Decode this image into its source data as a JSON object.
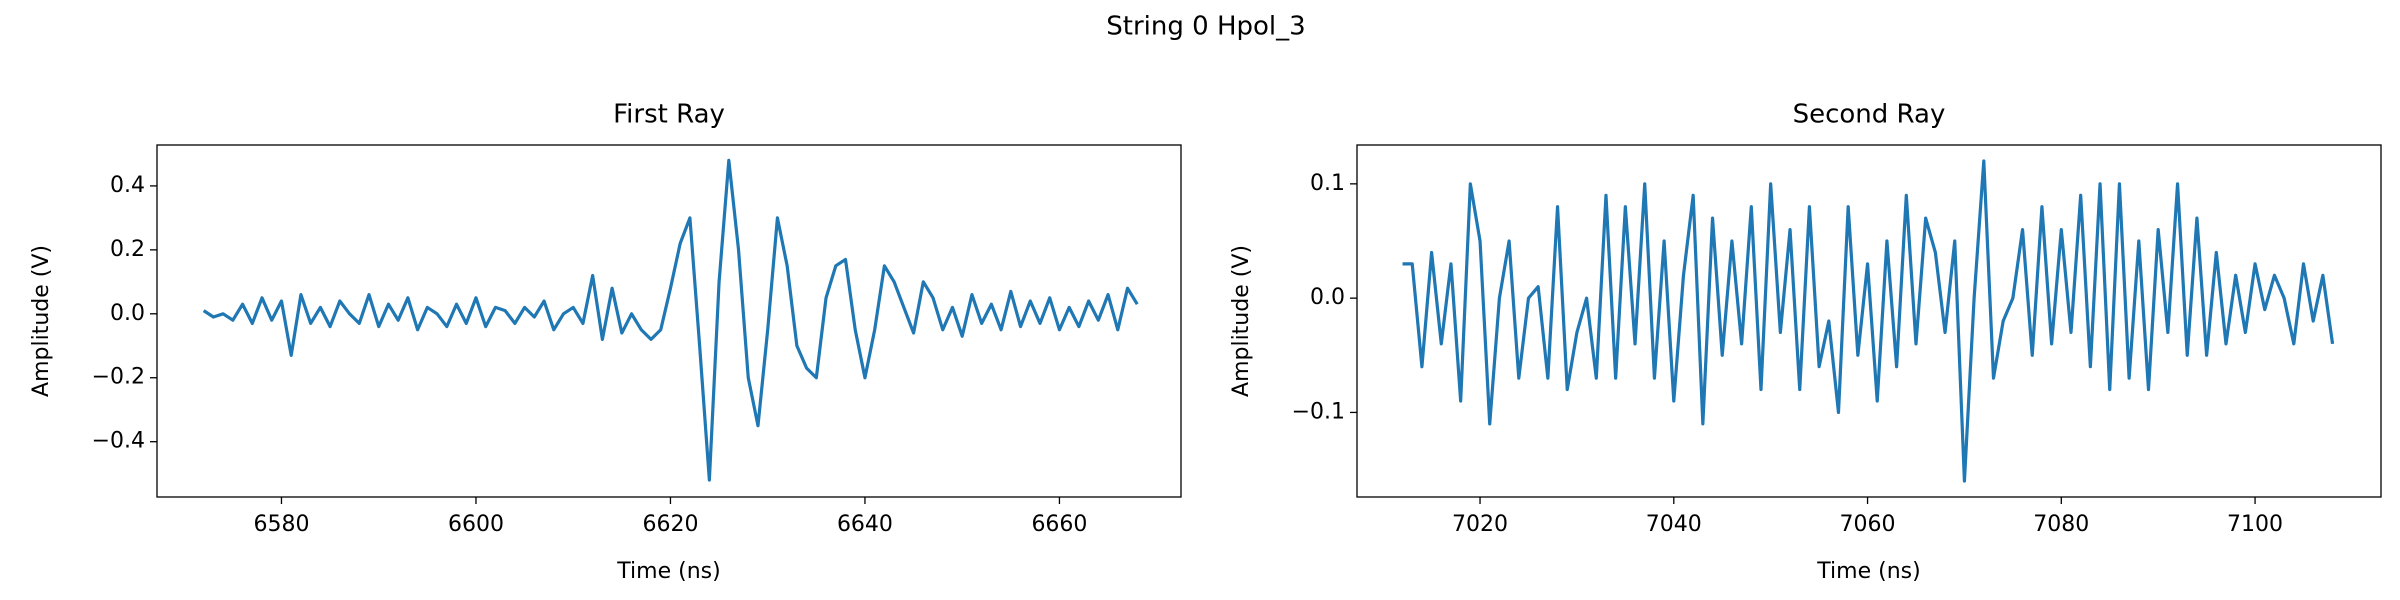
{
  "title": "String 0 Hpol_3",
  "chart_data": [
    {
      "type": "line",
      "title": "First Ray",
      "x_label": "Time (ns)",
      "y_label": "Amplitude (V)",
      "color": "#1f77b4",
      "xlim": [
        6567.2,
        6672.5
      ],
      "ylim": [
        -0.573,
        0.528
      ],
      "xticks": [
        6580,
        6600,
        6620,
        6640,
        6660
      ],
      "yticks": [
        {
          "value": -0.4,
          "label": "−0.4"
        },
        {
          "value": -0.2,
          "label": "−0.2"
        },
        {
          "value": 0,
          "label": "0.0"
        },
        0.2,
        0.4
      ],
      "x": [
        6572,
        6573,
        6574,
        6575,
        6576,
        6577,
        6578,
        6579,
        6580,
        6581,
        6582,
        6583,
        6584,
        6585,
        6586,
        6587,
        6588,
        6589,
        6590,
        6591,
        6592,
        6593,
        6594,
        6595,
        6596,
        6597,
        6598,
        6599,
        6600,
        6601,
        6602,
        6603,
        6604,
        6605,
        6606,
        6607,
        6608,
        6609,
        6610,
        6611,
        6612,
        6613,
        6614,
        6615,
        6616,
        6617,
        6618,
        6619,
        6620,
        6621,
        6622,
        6623,
        6624,
        6625,
        6626,
        6627,
        6628,
        6629,
        6630,
        6631,
        6632,
        6633,
        6634,
        6635,
        6636,
        6637,
        6638,
        6639,
        6640,
        6641,
        6642,
        6643,
        6644,
        6645,
        6646,
        6647,
        6648,
        6649,
        6650,
        6651,
        6652,
        6653,
        6654,
        6655,
        6656,
        6657,
        6658,
        6659,
        6660,
        6661,
        6662,
        6663,
        6664,
        6665,
        6666,
        6667,
        6668
      ],
      "values": [
        0.01,
        -0.01,
        0.0,
        -0.02,
        0.03,
        -0.03,
        0.05,
        -0.02,
        0.04,
        -0.13,
        0.06,
        -0.03,
        0.02,
        -0.04,
        0.04,
        0.0,
        -0.03,
        0.06,
        -0.04,
        0.03,
        -0.02,
        0.05,
        -0.05,
        0.02,
        0.0,
        -0.04,
        0.03,
        -0.03,
        0.05,
        -0.04,
        0.02,
        0.01,
        -0.03,
        0.02,
        -0.01,
        0.04,
        -0.05,
        0.0,
        0.02,
        -0.03,
        0.12,
        -0.08,
        0.08,
        -0.06,
        0.0,
        -0.05,
        -0.08,
        -0.05,
        0.08,
        0.22,
        0.3,
        -0.1,
        -0.52,
        0.1,
        0.48,
        0.2,
        -0.2,
        -0.35,
        -0.05,
        0.3,
        0.15,
        -0.1,
        -0.17,
        -0.2,
        0.05,
        0.15,
        0.17,
        -0.05,
        -0.2,
        -0.05,
        0.15,
        0.1,
        0.02,
        -0.06,
        0.1,
        0.05,
        -0.05,
        0.02,
        -0.07,
        0.06,
        -0.03,
        0.03,
        -0.05,
        0.07,
        -0.04,
        0.04,
        -0.03,
        0.05,
        -0.05,
        0.02,
        -0.04,
        0.04,
        -0.02,
        0.06,
        -0.05,
        0.08,
        0.03
      ]
    },
    {
      "type": "line",
      "title": "Second Ray",
      "x_label": "Time (ns)",
      "y_label": "Amplitude (V)",
      "color": "#1f77b4",
      "xlim": [
        7007.3,
        7113.0
      ],
      "ylim": [
        -0.174,
        0.134
      ],
      "xticks": [
        7020,
        7040,
        7060,
        7080,
        7100
      ],
      "yticks": [
        {
          "value": -0.1,
          "label": "−0.1"
        },
        {
          "value": 0,
          "label": "0.0"
        },
        0.1
      ],
      "x": [
        7012,
        7013,
        7014,
        7015,
        7016,
        7017,
        7018,
        7019,
        7020,
        7021,
        7022,
        7023,
        7024,
        7025,
        7026,
        7027,
        7028,
        7029,
        7030,
        7031,
        7032,
        7033,
        7034,
        7035,
        7036,
        7037,
        7038,
        7039,
        7040,
        7041,
        7042,
        7043,
        7044,
        7045,
        7046,
        7047,
        7048,
        7049,
        7050,
        7051,
        7052,
        7053,
        7054,
        7055,
        7056,
        7057,
        7058,
        7059,
        7060,
        7061,
        7062,
        7063,
        7064,
        7065,
        7066,
        7067,
        7068,
        7069,
        7070,
        7071,
        7072,
        7073,
        7074,
        7075,
        7076,
        7077,
        7078,
        7079,
        7080,
        7081,
        7082,
        7083,
        7084,
        7085,
        7086,
        7087,
        7088,
        7089,
        7090,
        7091,
        7092,
        7093,
        7094,
        7095,
        7096,
        7097,
        7098,
        7099,
        7100,
        7101,
        7102,
        7103,
        7104,
        7105,
        7106,
        7107,
        7108
      ],
      "values": [
        0.03,
        0.03,
        -0.06,
        0.04,
        -0.04,
        0.03,
        -0.09,
        0.1,
        0.05,
        -0.11,
        0.0,
        0.05,
        -0.07,
        0.0,
        0.01,
        -0.07,
        0.08,
        -0.08,
        -0.03,
        0.0,
        -0.07,
        0.09,
        -0.07,
        0.08,
        -0.04,
        0.1,
        -0.07,
        0.05,
        -0.09,
        0.02,
        0.09,
        -0.11,
        0.07,
        -0.05,
        0.05,
        -0.04,
        0.08,
        -0.08,
        0.1,
        -0.03,
        0.06,
        -0.08,
        0.08,
        -0.06,
        -0.02,
        -0.1,
        0.08,
        -0.05,
        0.03,
        -0.09,
        0.05,
        -0.06,
        0.09,
        -0.04,
        0.07,
        0.04,
        -0.03,
        0.05,
        -0.16,
        0.0,
        0.12,
        -0.07,
        -0.02,
        0.0,
        0.06,
        -0.05,
        0.08,
        -0.04,
        0.06,
        -0.03,
        0.09,
        -0.06,
        0.1,
        -0.08,
        0.1,
        -0.07,
        0.05,
        -0.08,
        0.06,
        -0.03,
        0.1,
        -0.05,
        0.07,
        -0.05,
        0.04,
        -0.04,
        0.02,
        -0.03,
        0.03,
        -0.01,
        0.02,
        0.0,
        -0.04,
        0.03,
        -0.02,
        0.02,
        -0.04
      ]
    }
  ]
}
